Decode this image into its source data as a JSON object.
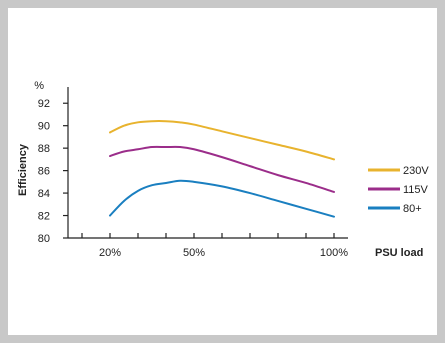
{
  "chart_data": {
    "type": "line",
    "xlabel": "PSU load",
    "ylabel": "Efficiency",
    "yunit": "%",
    "xlim": [
      5,
      105
    ],
    "ylim": [
      80,
      93
    ],
    "x_ticks": [
      20,
      50,
      100
    ],
    "x_tick_labels": [
      "20%",
      "50%",
      "100%"
    ],
    "x_minor_ticks": [
      10,
      20,
      30,
      40,
      50,
      60,
      70,
      80,
      90,
      100
    ],
    "y_ticks": [
      80,
      82,
      84,
      86,
      88,
      90,
      92
    ],
    "grid": false,
    "legend": "right",
    "series": [
      {
        "name": "230V",
        "color": "#e8b32e",
        "x": [
          20,
          25,
          30,
          35,
          40,
          45,
          50,
          60,
          70,
          80,
          90,
          100
        ],
        "y": [
          89.4,
          90.0,
          90.3,
          90.4,
          90.4,
          90.3,
          90.1,
          89.5,
          88.9,
          88.3,
          87.7,
          87.0
        ]
      },
      {
        "name": "115V",
        "color": "#9b2d8a",
        "x": [
          20,
          25,
          30,
          35,
          40,
          45,
          50,
          60,
          70,
          80,
          90,
          100
        ],
        "y": [
          87.3,
          87.7,
          87.9,
          88.1,
          88.1,
          88.1,
          87.9,
          87.2,
          86.4,
          85.6,
          84.9,
          84.1
        ]
      },
      {
        "name": "80+",
        "color": "#1a7fc0",
        "x": [
          20,
          25,
          30,
          35,
          40,
          45,
          50,
          60,
          70,
          80,
          90,
          100
        ],
        "y": [
          82.0,
          83.3,
          84.2,
          84.7,
          84.9,
          85.1,
          85.0,
          84.6,
          84.0,
          83.3,
          82.6,
          81.9
        ]
      }
    ]
  }
}
